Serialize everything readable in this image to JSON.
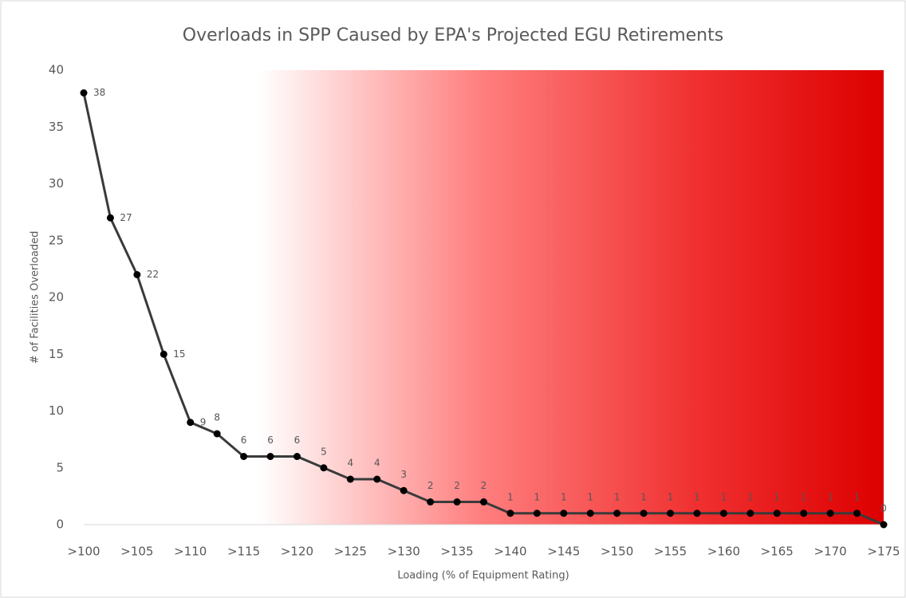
{
  "chart_data": {
    "type": "line",
    "title": "Overloads in SPP Caused by EPA's Projected EGU Retirements",
    "x_label": "Loading (% of Equipment Rating)",
    "y_label": "# of Facilities Overloaded",
    "categories": [
      ">100",
      null,
      ">105",
      null,
      ">110",
      null,
      ">115",
      null,
      ">120",
      null,
      ">125",
      null,
      ">130",
      null,
      ">135",
      null,
      ">140",
      null,
      ">145",
      null,
      ">150",
      null,
      ">155",
      null,
      ">160",
      null,
      ">165",
      null,
      ">170",
      null,
      ">175"
    ],
    "series": [
      {
        "name": "Facilities overloaded",
        "color": "#3a3a3a",
        "values": [
          38,
          27,
          22,
          15,
          9,
          8,
          6,
          6,
          6,
          5,
          4,
          4,
          3,
          2,
          2,
          2,
          1,
          1,
          1,
          1,
          1,
          1,
          1,
          1,
          1,
          1,
          1,
          1,
          1,
          1,
          0
        ]
      }
    ],
    "ylim": [
      0,
      40
    ],
    "yticks": [
      0,
      5,
      10,
      15,
      20,
      25,
      30,
      35,
      40
    ],
    "grid": false
  }
}
